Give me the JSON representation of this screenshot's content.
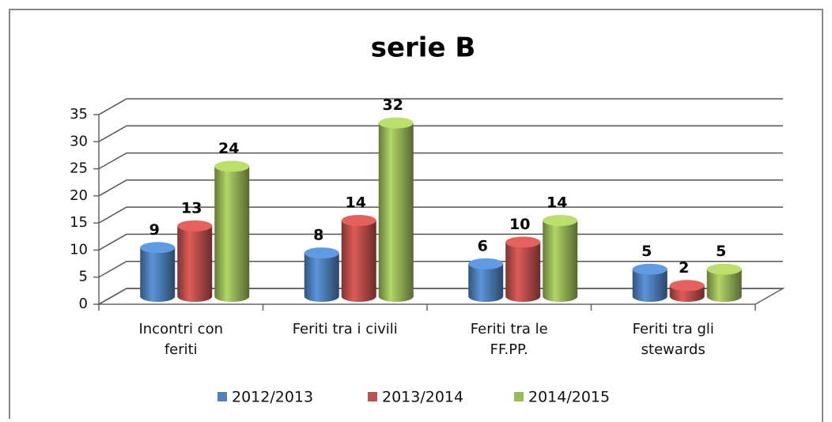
{
  "chart_data": {
    "type": "bar3d",
    "title": "serie B",
    "categories": [
      "Incontri con\nferiti",
      "Feriti tra i civili",
      "Feriti tra le\nFF.PP.",
      "Feriti tra gli\nstewards"
    ],
    "series": [
      {
        "name": "2012/2013",
        "color": "#4f81bd",
        "values": [
          9,
          8,
          6,
          5
        ]
      },
      {
        "name": "2013/2014",
        "color": "#c0504d",
        "values": [
          13,
          14,
          10,
          2
        ]
      },
      {
        "name": "2014/2015",
        "color": "#9bbb59",
        "values": [
          24,
          32,
          14,
          5
        ]
      }
    ],
    "ylim": [
      0,
      35
    ],
    "yticks": [
      0,
      5,
      10,
      15,
      20,
      25,
      30,
      35
    ],
    "grid": true,
    "legend": "bottom"
  }
}
